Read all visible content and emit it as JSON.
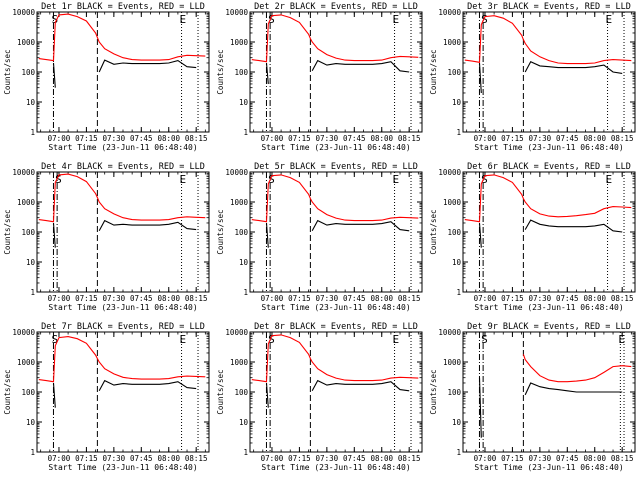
{
  "start_time_label": "Start Time (23-Jun-11 06:48:40)",
  "ylabel": "Counts/sec",
  "x_ticks": [
    "07:00",
    "07:15",
    "07:30",
    "07:45",
    "08:00",
    "08:15"
  ],
  "y_ticks": [
    "1",
    "10",
    "100",
    "1000",
    "10000"
  ],
  "colors": {
    "events": "#000000",
    "lld": "#ff0000"
  },
  "chart_data": [
    {
      "type": "line",
      "title": "Det 1r BLACK = Events, RED = LLD",
      "xlabel": "Start Time (23-Jun-11 06:48:40)",
      "ylabel": "Counts/sec",
      "yscale": "log",
      "ylim": [
        1,
        10000
      ],
      "x": [
        "06:49",
        "06:53",
        "06:57",
        "06:58",
        "07:00",
        "07:05",
        "07:10",
        "07:15",
        "07:20",
        "07:21",
        "07:22",
        "07:25",
        "07:30",
        "07:35",
        "07:40",
        "07:45",
        "07:50",
        "07:55",
        "08:00",
        "08:05",
        "08:10",
        "08:15",
        "08:20"
      ],
      "markers": [
        {
          "label": "S",
          "time": "06:57",
          "style": "dash-dot"
        },
        {
          "label": "",
          "time": "07:21",
          "style": "dashed"
        },
        {
          "label": "E",
          "time": "08:07",
          "style": "dotted"
        },
        {
          "label": "",
          "time": "08:16",
          "style": "dotted"
        }
      ],
      "series": [
        {
          "values": [
            280,
            260,
            240,
            4500,
            8000,
            8500,
            7000,
            5000,
            2000,
            1400,
            1000,
            600,
            400,
            300,
            260,
            250,
            250,
            250,
            260,
            320,
            360,
            350,
            340
          ]
        },
        {
          "values": [
            null,
            null,
            200,
            30,
            null,
            null,
            null,
            null,
            null,
            null,
            100,
            250,
            180,
            200,
            190,
            190,
            190,
            190,
            200,
            240,
            150,
            140,
            null
          ]
        }
      ]
    },
    {
      "type": "line",
      "title": "Det 2r BLACK = Events, RED = LLD",
      "xlabel": "Start Time (23-Jun-11 06:48:40)",
      "ylabel": "Counts/sec",
      "yscale": "log",
      "ylim": [
        1,
        10000
      ],
      "x": [
        "06:49",
        "06:53",
        "06:57",
        "06:58",
        "07:00",
        "07:05",
        "07:10",
        "07:15",
        "07:20",
        "07:21",
        "07:22",
        "07:25",
        "07:30",
        "07:35",
        "07:40",
        "07:45",
        "07:50",
        "07:55",
        "08:00",
        "08:05",
        "08:10",
        "08:15",
        "08:20"
      ],
      "markers": [
        {
          "label": "",
          "time": "06:57",
          "style": "dash-dot"
        },
        {
          "label": "S",
          "time": "06:59",
          "style": "dash-dot"
        },
        {
          "label": "",
          "time": "07:21",
          "style": "dashed"
        },
        {
          "label": "E",
          "time": "08:07",
          "style": "dotted"
        },
        {
          "label": "",
          "time": "08:16",
          "style": "dotted"
        }
      ],
      "series": [
        {
          "values": [
            260,
            240,
            220,
            4000,
            7500,
            8000,
            6500,
            4500,
            1800,
            1300,
            1000,
            600,
            380,
            290,
            250,
            240,
            240,
            240,
            250,
            300,
            330,
            320,
            310
          ]
        },
        {
          "values": [
            null,
            null,
            200,
            40,
            null,
            null,
            null,
            null,
            null,
            null,
            110,
            240,
            170,
            190,
            180,
            180,
            180,
            180,
            190,
            220,
            110,
            100,
            null
          ]
        }
      ]
    },
    {
      "type": "line",
      "title": "Det 3r BLACK = Events, RED = LLD",
      "xlabel": "Start Time (23-Jun-11 06:48:40)",
      "ylabel": "Counts/sec",
      "yscale": "log",
      "ylim": [
        1,
        10000
      ],
      "x": [
        "06:49",
        "06:53",
        "06:57",
        "06:58",
        "07:00",
        "07:05",
        "07:10",
        "07:15",
        "07:20",
        "07:21",
        "07:22",
        "07:25",
        "07:30",
        "07:35",
        "07:40",
        "07:45",
        "07:50",
        "07:55",
        "08:00",
        "08:05",
        "08:10",
        "08:15",
        "08:20"
      ],
      "markers": [
        {
          "label": "",
          "time": "06:57",
          "style": "dash-dot"
        },
        {
          "label": "S",
          "time": "06:59",
          "style": "dash-dot"
        },
        {
          "label": "",
          "time": "07:21",
          "style": "dashed"
        },
        {
          "label": "E",
          "time": "08:07",
          "style": "dotted"
        },
        {
          "label": "",
          "time": "08:16",
          "style": "dotted"
        }
      ],
      "series": [
        {
          "values": [
            250,
            230,
            210,
            3800,
            7000,
            7500,
            6200,
            4200,
            1700,
            1200,
            900,
            500,
            320,
            240,
            200,
            190,
            190,
            190,
            200,
            240,
            260,
            250,
            240
          ]
        },
        {
          "values": [
            null,
            null,
            200,
            20,
            null,
            null,
            null,
            null,
            null,
            null,
            100,
            220,
            160,
            150,
            140,
            140,
            140,
            140,
            150,
            170,
            100,
            90,
            null
          ]
        }
      ]
    },
    {
      "type": "line",
      "title": "Det 4r BLACK = Events, RED = LLD",
      "xlabel": "Start Time (23-Jun-11 06:48:40)",
      "ylabel": "Counts/sec",
      "yscale": "log",
      "ylim": [
        1,
        10000
      ],
      "x": [
        "06:49",
        "06:53",
        "06:57",
        "06:58",
        "07:00",
        "07:05",
        "07:10",
        "07:15",
        "07:20",
        "07:21",
        "07:22",
        "07:25",
        "07:30",
        "07:35",
        "07:40",
        "07:45",
        "07:50",
        "07:55",
        "08:00",
        "08:05",
        "08:10",
        "08:15",
        "08:20"
      ],
      "markers": [
        {
          "label": "",
          "time": "06:57",
          "style": "dash-dot"
        },
        {
          "label": "S",
          "time": "06:59",
          "style": "dash-dot"
        },
        {
          "label": "",
          "time": "07:21",
          "style": "dashed"
        },
        {
          "label": "E",
          "time": "08:07",
          "style": "dotted"
        },
        {
          "label": "",
          "time": "08:16",
          "style": "dotted"
        }
      ],
      "series": [
        {
          "values": [
            260,
            240,
            220,
            4500,
            8000,
            8500,
            7000,
            4800,
            1900,
            1400,
            1000,
            600,
            400,
            300,
            260,
            250,
            250,
            250,
            260,
            300,
            320,
            310,
            300
          ]
        },
        {
          "values": [
            null,
            null,
            200,
            30,
            null,
            null,
            null,
            null,
            null,
            null,
            110,
            240,
            170,
            180,
            170,
            170,
            170,
            170,
            180,
            210,
            130,
            120,
            null
          ]
        }
      ]
    },
    {
      "type": "line",
      "title": "Det 5r BLACK = Events, RED = LLD",
      "xlabel": "Start Time (23-Jun-11 06:48:40)",
      "ylabel": "Counts/sec",
      "yscale": "log",
      "ylim": [
        1,
        10000
      ],
      "x": [
        "06:49",
        "06:53",
        "06:57",
        "06:58",
        "07:00",
        "07:05",
        "07:10",
        "07:15",
        "07:20",
        "07:21",
        "07:22",
        "07:25",
        "07:30",
        "07:35",
        "07:40",
        "07:45",
        "07:50",
        "07:55",
        "08:00",
        "08:05",
        "08:10",
        "08:15",
        "08:20"
      ],
      "markers": [
        {
          "label": "",
          "time": "06:57",
          "style": "dash-dot"
        },
        {
          "label": "S",
          "time": "06:59",
          "style": "dash-dot"
        },
        {
          "label": "",
          "time": "07:21",
          "style": "dashed"
        },
        {
          "label": "E",
          "time": "08:07",
          "style": "dotted"
        },
        {
          "label": "",
          "time": "08:16",
          "style": "dotted"
        }
      ],
      "series": [
        {
          "values": [
            260,
            240,
            220,
            4000,
            7500,
            8000,
            6500,
            4500,
            1800,
            1300,
            1000,
            600,
            380,
            290,
            250,
            240,
            240,
            240,
            250,
            290,
            310,
            300,
            290
          ]
        },
        {
          "values": [
            null,
            null,
            200,
            30,
            null,
            null,
            null,
            null,
            null,
            null,
            110,
            240,
            170,
            190,
            180,
            180,
            180,
            180,
            190,
            220,
            120,
            110,
            null
          ]
        }
      ]
    },
    {
      "type": "line",
      "title": "Det 6r BLACK = Events, RED = LLD",
      "xlabel": "Start Time (23-Jun-11 06:48:40)",
      "ylabel": "Counts/sec",
      "yscale": "log",
      "ylim": [
        1,
        10000
      ],
      "x": [
        "06:49",
        "06:53",
        "06:57",
        "06:58",
        "07:00",
        "07:05",
        "07:10",
        "07:15",
        "07:20",
        "07:21",
        "07:22",
        "07:25",
        "07:30",
        "07:35",
        "07:40",
        "07:45",
        "07:50",
        "07:55",
        "08:00",
        "08:05",
        "08:10",
        "08:15",
        "08:20"
      ],
      "markers": [
        {
          "label": "",
          "time": "06:57",
          "style": "dash-dot"
        },
        {
          "label": "S",
          "time": "06:59",
          "style": "dash-dot"
        },
        {
          "label": "",
          "time": "07:21",
          "style": "dashed"
        },
        {
          "label": "E",
          "time": "08:07",
          "style": "dotted"
        },
        {
          "label": "",
          "time": "08:16",
          "style": "dotted"
        }
      ],
      "series": [
        {
          "values": [
            260,
            240,
            220,
            4000,
            7500,
            8000,
            6500,
            4500,
            1800,
            1300,
            1000,
            600,
            400,
            340,
            320,
            330,
            350,
            380,
            420,
            600,
            700,
            680,
            650
          ]
        },
        {
          "values": [
            null,
            null,
            200,
            30,
            null,
            null,
            null,
            null,
            null,
            null,
            120,
            250,
            180,
            160,
            150,
            150,
            150,
            150,
            160,
            180,
            110,
            100,
            null
          ]
        }
      ]
    },
    {
      "type": "line",
      "title": "Det 7r BLACK = Events, RED = LLD",
      "xlabel": "Start Time (23-Jun-11 06:48:40)",
      "ylabel": "Counts/sec",
      "yscale": "log",
      "ylim": [
        1,
        10000
      ],
      "x": [
        "06:49",
        "06:53",
        "06:57",
        "06:58",
        "07:00",
        "07:05",
        "07:10",
        "07:15",
        "07:20",
        "07:21",
        "07:22",
        "07:25",
        "07:30",
        "07:35",
        "07:40",
        "07:45",
        "07:50",
        "07:55",
        "08:00",
        "08:05",
        "08:10",
        "08:15",
        "08:20"
      ],
      "markers": [
        {
          "label": "S",
          "time": "06:57",
          "style": "dash-dot"
        },
        {
          "label": "",
          "time": "07:21",
          "style": "dashed"
        },
        {
          "label": "E",
          "time": "08:07",
          "style": "dotted"
        },
        {
          "label": "",
          "time": "08:16",
          "style": "dotted"
        }
      ],
      "series": [
        {
          "values": [
            260,
            240,
            220,
            3500,
            6500,
            7000,
            6000,
            4200,
            1700,
            1300,
            1000,
            600,
            400,
            310,
            280,
            270,
            270,
            270,
            280,
            320,
            340,
            330,
            320
          ]
        },
        {
          "values": [
            null,
            null,
            200,
            30,
            null,
            null,
            null,
            null,
            null,
            null,
            110,
            240,
            170,
            190,
            180,
            180,
            180,
            180,
            190,
            220,
            140,
            130,
            null
          ]
        }
      ]
    },
    {
      "type": "line",
      "title": "Det 8r BLACK = Events, RED = LLD",
      "xlabel": "Start Time (23-Jun-11 06:48:40)",
      "ylabel": "Counts/sec",
      "yscale": "log",
      "ylim": [
        1,
        10000
      ],
      "x": [
        "06:49",
        "06:53",
        "06:57",
        "06:58",
        "07:00",
        "07:05",
        "07:10",
        "07:15",
        "07:20",
        "07:21",
        "07:22",
        "07:25",
        "07:30",
        "07:35",
        "07:40",
        "07:45",
        "07:50",
        "07:55",
        "08:00",
        "08:05",
        "08:10",
        "08:15",
        "08:20"
      ],
      "markers": [
        {
          "label": "",
          "time": "06:57",
          "style": "dash-dot"
        },
        {
          "label": "S",
          "time": "06:59",
          "style": "dash-dot"
        },
        {
          "label": "",
          "time": "07:21",
          "style": "dashed"
        },
        {
          "label": "E",
          "time": "08:07",
          "style": "dotted"
        },
        {
          "label": "",
          "time": "08:16",
          "style": "dotted"
        }
      ],
      "series": [
        {
          "values": [
            260,
            240,
            220,
            4000,
            7500,
            8000,
            6500,
            4500,
            1800,
            1300,
            1000,
            600,
            380,
            290,
            250,
            240,
            240,
            240,
            250,
            290,
            310,
            300,
            290
          ]
        },
        {
          "values": [
            null,
            null,
            200,
            30,
            null,
            null,
            null,
            null,
            null,
            null,
            110,
            240,
            170,
            190,
            180,
            180,
            180,
            180,
            190,
            220,
            120,
            110,
            null
          ]
        }
      ]
    },
    {
      "type": "line",
      "title": "Det 9r BLACK = Events, RED = LLD",
      "xlabel": "Start Time (23-Jun-11 06:48:40)",
      "ylabel": "Counts/sec",
      "yscale": "log",
      "ylim": [
        1,
        10000
      ],
      "x": [
        "06:49",
        "06:53",
        "06:57",
        "06:58",
        "07:21",
        "07:22",
        "07:25",
        "07:30",
        "07:35",
        "07:40",
        "07:45",
        "07:50",
        "07:55",
        "08:00",
        "08:05",
        "08:10",
        "08:15",
        "08:20"
      ],
      "markers": [
        {
          "label": "",
          "time": "06:57",
          "style": "dash-dot"
        },
        {
          "label": "S",
          "time": "06:59",
          "style": "dash-dot"
        },
        {
          "label": "",
          "time": "07:21",
          "style": "dashed"
        },
        {
          "label": "E",
          "time": "08:14",
          "style": "dotted"
        },
        {
          "label": "",
          "time": "08:16",
          "style": "dotted"
        }
      ],
      "series": [
        {
          "values": [
            null,
            null,
            null,
            null,
            1800,
            1200,
            700,
            350,
            250,
            220,
            220,
            230,
            250,
            300,
            450,
            700,
            750,
            700
          ]
        },
        {
          "values": [
            null,
            null,
            300,
            3,
            null,
            80,
            200,
            150,
            130,
            120,
            110,
            100,
            100,
            100,
            100,
            100,
            100,
            null
          ]
        }
      ]
    }
  ]
}
